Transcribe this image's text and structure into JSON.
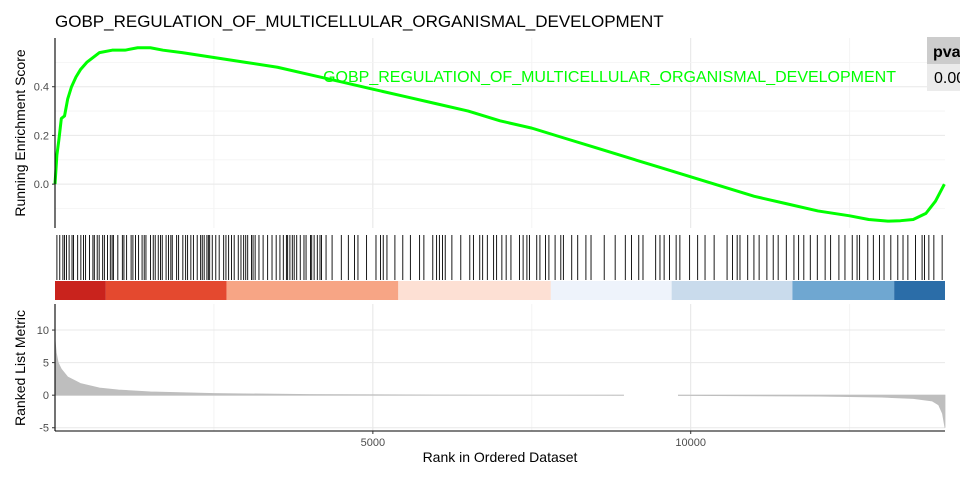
{
  "chart_data": {
    "type": "line",
    "title": "GOBP_REGULATION_OF_MULTICELLULAR_ORGANISMAL_DEVELOPMENT",
    "gene_set_label": "GOBP_REGULATION_OF_MULTICELLULAR_ORGANISMAL_DEVELOPMENT",
    "line_color": "#00ff00",
    "table": {
      "header": "pva",
      "value": "0.00"
    },
    "xlabel": "Rank in Ordered Dataset",
    "xlim": [
      0,
      14000
    ],
    "xticks": [
      5000,
      10000
    ],
    "xtick_labels": [
      "5000",
      "10000"
    ],
    "panels": {
      "enrichment": {
        "ylabel": "Running Enrichment Score",
        "ylim": [
          -0.18,
          0.6
        ],
        "yticks": [
          0.0,
          0.2,
          0.4
        ],
        "ytick_labels": [
          "0.0",
          "0.2",
          "0.4"
        ],
        "series": [
          {
            "x": [
              0,
              30,
              60,
              100,
              150,
              200,
              260,
              330,
              400,
              500,
              600,
              700,
              900,
              1100,
              1300,
              1500,
              1700,
              2000,
              2500,
              3000,
              3500,
              4000,
              4500,
              5000,
              5500,
              6000,
              6500,
              7000,
              7500,
              8000,
              8500,
              9000,
              9500,
              10000,
              10500,
              11000,
              11500,
              12000,
              12500,
              12800,
              13100,
              13300,
              13500,
              13700,
              13850,
              13950,
              13990
            ],
            "y": [
              0.0,
              0.12,
              0.18,
              0.27,
              0.28,
              0.35,
              0.4,
              0.44,
              0.47,
              0.5,
              0.52,
              0.54,
              0.55,
              0.55,
              0.56,
              0.56,
              0.55,
              0.54,
              0.52,
              0.5,
              0.48,
              0.45,
              0.42,
              0.39,
              0.36,
              0.33,
              0.3,
              0.26,
              0.23,
              0.19,
              0.15,
              0.11,
              0.07,
              0.03,
              -0.01,
              -0.05,
              -0.08,
              -0.11,
              -0.13,
              -0.145,
              -0.152,
              -0.15,
              -0.145,
              -0.12,
              -0.07,
              -0.02,
              0.0
            ]
          }
        ]
      },
      "hits": {
        "gradient_colors": [
          "#c9231d",
          "#e4492f",
          "#f7a585",
          "#fde0d4",
          "#eef3fb",
          "#c9dbec",
          "#6fa7d1",
          "#2b6da8"
        ],
        "gradient_breaks": [
          0,
          800,
          2700,
          5400,
          7800,
          9700,
          11600,
          13200,
          14000
        ]
      },
      "ranked_metric": {
        "ylabel": "Ranked List Metric",
        "ylim": [
          -5.5,
          14
        ],
        "yticks": [
          -5,
          0,
          5,
          10
        ],
        "ytick_labels": [
          "-5",
          "0",
          "5",
          "10"
        ],
        "series": [
          {
            "x": [
              0,
              20,
              50,
              100,
              200,
              400,
              700,
              1000,
              1500,
              2500,
              4000,
              6000,
              8000,
              10000,
              12000,
              13000,
              13500,
              13800,
              13900,
              13960,
              14000
            ],
            "y": [
              8.5,
              6.5,
              5.0,
              4.0,
              2.8,
              1.8,
              1.1,
              0.8,
              0.5,
              0.25,
              0.1,
              0.03,
              0.0,
              -0.05,
              -0.15,
              -0.3,
              -0.5,
              -0.9,
              -1.5,
              -2.8,
              -5.0
            ]
          }
        ]
      }
    }
  }
}
